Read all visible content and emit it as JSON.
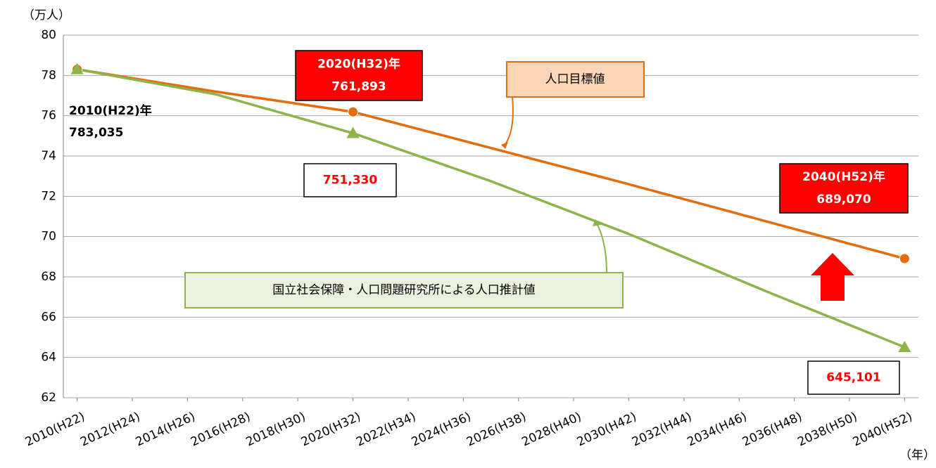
{
  "chart_data": {
    "type": "line",
    "y_unit_label": "（万人）",
    "x_unit_label": "（年）",
    "xlim": [
      2009.5,
      2040.5
    ],
    "xticks": [
      {
        "value": 2010,
        "label": "2010(H22)"
      },
      {
        "value": 2012,
        "label": "2012(H24)"
      },
      {
        "value": 2014,
        "label": "2014(H26)"
      },
      {
        "value": 2016,
        "label": "2016(H28)"
      },
      {
        "value": 2018,
        "label": "2018(H30)"
      },
      {
        "value": 2020,
        "label": "2020(H32)"
      },
      {
        "value": 2022,
        "label": "2022(H34)"
      },
      {
        "value": 2024,
        "label": "2024(H36)"
      },
      {
        "value": 2026,
        "label": "2026(H38)"
      },
      {
        "value": 2028,
        "label": "2028(H40)"
      },
      {
        "value": 2030,
        "label": "2030(H42)"
      },
      {
        "value": 2032,
        "label": "2032(H44)"
      },
      {
        "value": 2034,
        "label": "2034(H46)"
      },
      {
        "value": 2036,
        "label": "2036(H48)"
      },
      {
        "value": 2038,
        "label": "2038(H50)"
      },
      {
        "value": 2040,
        "label": "2040(H52)"
      }
    ],
    "ylim": [
      62,
      80
    ],
    "yticks": [
      62,
      64,
      66,
      68,
      70,
      72,
      74,
      76,
      78,
      80
    ],
    "grid": true,
    "x": [
      2010,
      2015,
      2020,
      2025,
      2030,
      2035,
      2040
    ],
    "series": [
      {
        "name": "人口目標値",
        "color": "#e46c0a",
        "marker": "circle",
        "marker_x": [
          2010,
          2020,
          2040
        ],
        "values": [
          78.3035,
          77.2,
          76.1893,
          74.4,
          72.6,
          70.75,
          68.907
        ]
      },
      {
        "name": "国立社会保障・人口問題研究所による人口推計値",
        "color": "#8db44a",
        "marker": "triangle",
        "marker_x": [
          2010,
          2020,
          2040
        ],
        "values": [
          78.3035,
          77.07,
          75.133,
          72.75,
          70.13,
          67.27,
          64.5101
        ]
      }
    ],
    "annotations": [
      {
        "style": "plain",
        "lines": [
          "2010(H22)年",
          "783,035"
        ]
      },
      {
        "style": "red-box",
        "lines": [
          "2020(H32)年",
          "761,893"
        ]
      },
      {
        "style": "white-box",
        "lines": [
          "751,330"
        ]
      },
      {
        "style": "red-box",
        "lines": [
          "2040(H52)年",
          "689,070"
        ]
      },
      {
        "style": "white-box",
        "lines": [
          "645,101"
        ]
      }
    ]
  }
}
